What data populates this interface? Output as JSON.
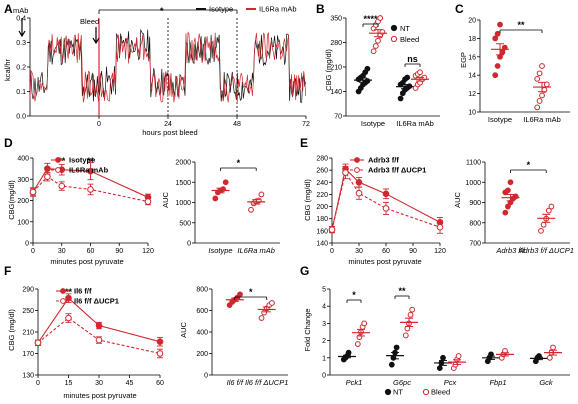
{
  "colors": {
    "red": "#d0282e",
    "black": "#111111",
    "grey": "#888888"
  },
  "panels": {
    "A": {
      "label": "A",
      "annotations": {
        "mab": "mAb",
        "bleed": "Bleed",
        "star": "*"
      },
      "chart_data": {
        "type": "line",
        "ylabel": "kcal/hr",
        "xlabel": "hours post bleed",
        "yticks": [
          "0.0",
          "0.1",
          "0.2",
          "0.3",
          "0.4"
        ],
        "xticks": [
          "0",
          "24",
          "48",
          "72"
        ],
        "xlim": [
          -24,
          72
        ],
        "ylim": [
          0,
          0.4
        ],
        "dashed_lines_at": [
          0,
          24,
          48
        ],
        "series": [
          {
            "name": "Isotype",
            "color": "#111111"
          },
          {
            "name": "IL6Ra mAb",
            "color": "#d0282e"
          }
        ]
      }
    },
    "B": {
      "label": "B",
      "chart_data": {
        "type": "scatter",
        "ylabel": "CBG (mg/dl)",
        "yticks": [
          "70",
          "140",
          "210",
          "280",
          "350"
        ],
        "ylim": [
          70,
          350
        ],
        "categories": [
          "Isotype",
          "IL6Ra mAb"
        ],
        "series": [
          {
            "name": "NT",
            "color": "#111111",
            "filled": true,
            "groups": [
              [
                140,
                150,
                160,
                165,
                170,
                175,
                180,
                185,
                195,
                205
              ],
              [
                120,
                135,
                145,
                150,
                155,
                160,
                165,
                175,
                180
              ]
            ]
          },
          {
            "name": "Bleed",
            "color": "#d0282e",
            "filled": false,
            "groups": [
              [
                255,
                270,
                285,
                300,
                310,
                320,
                330,
                340,
                350
              ],
              [
                150,
                160,
                165,
                175,
                180,
                185,
                190,
                195
              ]
            ]
          }
        ],
        "significance": [
          "****",
          "ns"
        ]
      }
    },
    "C": {
      "label": "C",
      "chart_data": {
        "type": "scatter",
        "ylabel": "EGP",
        "yticks": [
          "10",
          "12",
          "14",
          "16",
          "18",
          "20"
        ],
        "ylim": [
          10,
          20
        ],
        "categories": [
          "Isotype",
          "IL6Ra mAb"
        ],
        "groups": [
          [
            14,
            15,
            16,
            16.5,
            17,
            18,
            18.5,
            19.5
          ],
          [
            10.5,
            11.2,
            11.8,
            12.4,
            13,
            13.6,
            14.2,
            15
          ]
        ],
        "significance": [
          "**"
        ]
      }
    },
    "D": {
      "label": "D",
      "line": {
        "chart_data": {
          "type": "line",
          "ylabel": "CBG(mg/dl)",
          "xlabel": "minutes post pyruvate",
          "yticks": [
            "0",
            "100",
            "200",
            "300",
            "400"
          ],
          "ylim": [
            0,
            400
          ],
          "xticks": [
            "0",
            "30",
            "60",
            "90",
            "120"
          ],
          "xlim": [
            0,
            120
          ],
          "x": [
            0,
            15,
            30,
            60,
            120
          ],
          "series": [
            {
              "name": "Isotype",
              "values": [
                240,
                350,
                345,
                338,
                215
              ],
              "err": [
                20,
                25,
                25,
                40,
                15
              ],
              "style": "solid"
            },
            {
              "name": "IL6Ra mAb",
              "values": [
                240,
                312,
                268,
                252,
                195
              ],
              "err": [
                15,
                20,
                20,
                25,
                15
              ],
              "style": "dashed"
            }
          ],
          "significance": [
            "**",
            "**"
          ]
        }
      },
      "bar": {
        "chart_data": {
          "type": "scatter",
          "ylabel": "AUC",
          "yticks": [
            "0",
            "500",
            "1000",
            "1500",
            "2000"
          ],
          "ylim": [
            0,
            2000
          ],
          "categories": [
            "Isotype",
            "IL6Ra mAb"
          ],
          "groups": [
            [
              1100,
              1250,
              1300,
              1330,
              1500
            ],
            [
              820,
              980,
              1030,
              1050,
              1200
            ]
          ],
          "significance": [
            "*"
          ]
        }
      }
    },
    "E": {
      "label": "E",
      "line": {
        "chart_data": {
          "type": "line",
          "ylabel": "CBG (mg/dl)",
          "xlabel": "minutes post pyruvate",
          "yticks": [
            "140",
            "160",
            "180",
            "200",
            "220",
            "240",
            "260",
            "280"
          ],
          "ylim": [
            140,
            280
          ],
          "xticks": [
            "0",
            "30",
            "60",
            "90",
            "120"
          ],
          "xlim": [
            0,
            120
          ],
          "x": [
            0,
            15,
            30,
            60,
            120
          ],
          "series": [
            {
              "name": "Adrb3 f/f",
              "values": [
                162,
                262,
                240,
                221,
                174
              ],
              "err": [
                5,
                8,
                8,
                8,
                8
              ],
              "style": "solid"
            },
            {
              "name": "Adrb3 f/f ΔUCP1",
              "values": [
                162,
                256,
                222,
                197,
                166
              ],
              "err": [
                5,
                10,
                10,
                10,
                10
              ],
              "style": "dashed"
            }
          ]
        }
      },
      "bar": {
        "chart_data": {
          "type": "scatter",
          "ylabel": "AUC",
          "yticks": [
            "700",
            "800",
            "900",
            "1000",
            "1100"
          ],
          "ylim": [
            700,
            1100
          ],
          "categories": [
            "Adrb3 f/f",
            "Adrb3 f/f ΔUCP1"
          ],
          "groups": [
            [
              850,
              880,
              900,
              920,
              930,
              950,
              960,
              1000
            ],
            [
              760,
              790,
              820,
              860,
              880
            ]
          ],
          "significance": [
            "*"
          ]
        }
      }
    },
    "F": {
      "label": "F",
      "line": {
        "chart_data": {
          "type": "line",
          "ylabel": "CBG (mg/dl)",
          "xlabel": "minutes post pyruvate",
          "yticks": [
            "130",
            "170",
            "210",
            "250",
            "290"
          ],
          "ylim": [
            130,
            290
          ],
          "xticks": [
            "0",
            "15",
            "30",
            "45",
            "60"
          ],
          "xlim": [
            0,
            60
          ],
          "x": [
            0,
            15,
            30,
            60
          ],
          "series": [
            {
              "name": "Il6 f/f",
              "values": [
                190,
                273,
                222,
                192
              ],
              "err": [
                5,
                8,
                6,
                8
              ],
              "style": "solid"
            },
            {
              "name": "Il6 f/f ΔUCP1",
              "values": [
                190,
                236,
                195,
                170
              ],
              "err": [
                5,
                8,
                6,
                8
              ],
              "style": "dashed"
            }
          ],
          "significance": [
            "**"
          ]
        }
      },
      "bar": {
        "chart_data": {
          "type": "scatter",
          "ylabel": "AUC",
          "yticks": [
            "0",
            "200",
            "400",
            "600",
            "800"
          ],
          "ylim": [
            0,
            800
          ],
          "categories": [
            "Il6 f/f",
            "Il6 f/f ΔUCP1"
          ],
          "groups": [
            [
              650,
              680,
              700,
              720,
              750
            ],
            [
              530,
              580,
              620,
              650,
              670
            ]
          ],
          "significance": [
            "*"
          ]
        }
      }
    },
    "G": {
      "label": "G",
      "chart_data": {
        "type": "scatter",
        "ylabel": "Fold Change",
        "yticks": [
          "0",
          "1",
          "2",
          "3",
          "4",
          "5"
        ],
        "ylim": [
          0,
          5
        ],
        "categories": [
          "Pck1",
          "G6pc",
          "Pcx",
          "Fbp1",
          "Gck"
        ],
        "series": [
          {
            "name": "NT",
            "color": "#111111",
            "filled": true,
            "groups": [
              [
                0.9,
                1.0,
                1.1,
                1.3
              ],
              [
                0.6,
                1.0,
                1.3,
                1.6
              ],
              [
                0.4,
                0.7,
                1.0
              ],
              [
                0.8,
                1.0,
                1.2
              ],
              [
                0.8,
                1.0,
                1.1
              ]
            ]
          },
          {
            "name": "Bleed",
            "color": "#d0282e",
            "filled": false,
            "groups": [
              [
                1.8,
                2.2,
                2.5,
                2.8,
                3.0
              ],
              [
                2.3,
                2.7,
                3.0,
                3.5,
                3.8
              ],
              [
                0.4,
                0.6,
                0.9,
                1.1
              ],
              [
                1.0,
                1.2,
                1.4
              ],
              [
                1.0,
                1.3,
                1.6
              ]
            ]
          }
        ],
        "significance": [
          "*",
          "**"
        ]
      }
    }
  }
}
